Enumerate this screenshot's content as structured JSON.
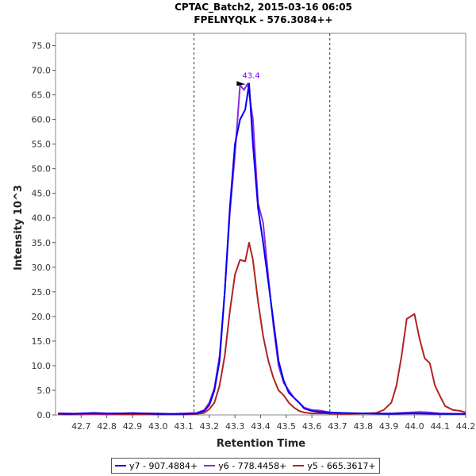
{
  "chart_data": {
    "type": "line",
    "title": "CPTAC_Batch2, 2015-03-16 06:05",
    "subtitle": "FPELNYQLK - 576.3084++",
    "xlabel": "Retention Time",
    "ylabel": "Intensity 10^3",
    "xlim": [
      42.6,
      44.2
    ],
    "ylim": [
      0,
      77.5
    ],
    "x_ticks": [
      "42.7",
      "42.8",
      "42.9",
      "43.0",
      "43.1",
      "43.2",
      "43.3",
      "43.4",
      "43.5",
      "43.6",
      "43.7",
      "43.8",
      "43.9",
      "44.0",
      "44.1",
      "44.2"
    ],
    "y_ticks": [
      "0.0",
      "5.0",
      "10.0",
      "15.0",
      "20.0",
      "25.0",
      "30.0",
      "35.0",
      "40.0",
      "45.0",
      "50.0",
      "55.0",
      "60.0",
      "65.0",
      "70.0",
      "75.0"
    ],
    "grid": false,
    "legend_position": "bottom",
    "integration_bounds": [
      43.14,
      43.67
    ],
    "peak_annotation": {
      "x": 43.35,
      "y": 67.3,
      "label": "43.4",
      "color": "#7f00ff"
    },
    "series": [
      {
        "name": "y7 - 907.4884+",
        "color": "#0000ee",
        "points": [
          [
            42.61,
            0.3
          ],
          [
            42.65,
            0.2
          ],
          [
            42.7,
            0.3
          ],
          [
            42.75,
            0.4
          ],
          [
            42.8,
            0.3
          ],
          [
            42.85,
            0.3
          ],
          [
            42.9,
            0.3
          ],
          [
            42.95,
            0.3
          ],
          [
            43.0,
            0.2
          ],
          [
            43.05,
            0.2
          ],
          [
            43.1,
            0.2
          ],
          [
            43.15,
            0.3
          ],
          [
            43.18,
            0.8
          ],
          [
            43.2,
            2.0
          ],
          [
            43.22,
            5.0
          ],
          [
            43.24,
            11.0
          ],
          [
            43.26,
            25.0
          ],
          [
            43.28,
            42.0
          ],
          [
            43.3,
            55.0
          ],
          [
            43.32,
            60.0
          ],
          [
            43.34,
            62.0
          ],
          [
            43.355,
            67.3
          ],
          [
            43.37,
            55.0
          ],
          [
            43.39,
            42.0
          ],
          [
            43.41,
            35.0
          ],
          [
            43.43,
            27.0
          ],
          [
            43.45,
            19.0
          ],
          [
            43.47,
            11.0
          ],
          [
            43.49,
            7.0
          ],
          [
            43.51,
            4.5
          ],
          [
            43.53,
            3.5
          ],
          [
            43.55,
            2.5
          ],
          [
            43.57,
            1.3
          ],
          [
            43.6,
            0.8
          ],
          [
            43.63,
            0.6
          ],
          [
            43.67,
            0.5
          ],
          [
            43.72,
            0.4
          ],
          [
            43.8,
            0.3
          ],
          [
            43.9,
            0.2
          ],
          [
            44.0,
            0.3
          ],
          [
            44.1,
            0.2
          ],
          [
            44.2,
            0.2
          ]
        ]
      },
      {
        "name": "y6 - 778.4458+",
        "color": "#8a2be2",
        "points": [
          [
            42.61,
            0.3
          ],
          [
            42.65,
            0.3
          ],
          [
            42.7,
            0.2
          ],
          [
            42.75,
            0.3
          ],
          [
            42.8,
            0.2
          ],
          [
            42.85,
            0.3
          ],
          [
            42.9,
            0.4
          ],
          [
            42.95,
            0.3
          ],
          [
            43.0,
            0.3
          ],
          [
            43.05,
            0.2
          ],
          [
            43.1,
            0.3
          ],
          [
            43.15,
            0.4
          ],
          [
            43.18,
            1.0
          ],
          [
            43.2,
            2.5
          ],
          [
            43.22,
            5.5
          ],
          [
            43.24,
            12.0
          ],
          [
            43.26,
            25.0
          ],
          [
            43.28,
            41.0
          ],
          [
            43.3,
            53.0
          ],
          [
            43.32,
            67.0
          ],
          [
            43.335,
            66.0
          ],
          [
            43.35,
            67.3
          ],
          [
            43.37,
            60.0
          ],
          [
            43.39,
            43.0
          ],
          [
            43.41,
            39.0
          ],
          [
            43.43,
            28.0
          ],
          [
            43.45,
            18.0
          ],
          [
            43.47,
            10.0
          ],
          [
            43.49,
            6.5
          ],
          [
            43.51,
            5.0
          ],
          [
            43.53,
            3.5
          ],
          [
            43.55,
            2.5
          ],
          [
            43.57,
            1.5
          ],
          [
            43.6,
            1.0
          ],
          [
            43.63,
            0.9
          ],
          [
            43.67,
            0.5
          ],
          [
            43.72,
            0.3
          ],
          [
            43.8,
            0.3
          ],
          [
            43.9,
            0.3
          ],
          [
            43.98,
            0.5
          ],
          [
            44.02,
            0.6
          ],
          [
            44.06,
            0.5
          ],
          [
            44.1,
            0.3
          ],
          [
            44.2,
            0.2
          ]
        ]
      },
      {
        "name": "y5 - 665.3617+",
        "color": "#b22222",
        "points": [
          [
            42.61,
            0.1
          ],
          [
            42.65,
            0.1
          ],
          [
            42.7,
            0.1
          ],
          [
            42.75,
            0.2
          ],
          [
            42.8,
            0.1
          ],
          [
            42.85,
            0.1
          ],
          [
            42.9,
            0.1
          ],
          [
            42.95,
            0.1
          ],
          [
            43.0,
            0.1
          ],
          [
            43.05,
            0.1
          ],
          [
            43.1,
            0.1
          ],
          [
            43.15,
            0.2
          ],
          [
            43.18,
            0.4
          ],
          [
            43.2,
            1.2
          ],
          [
            43.22,
            2.5
          ],
          [
            43.24,
            6.0
          ],
          [
            43.26,
            12.0
          ],
          [
            43.28,
            21.0
          ],
          [
            43.3,
            28.5
          ],
          [
            43.32,
            31.5
          ],
          [
            43.34,
            31.2
          ],
          [
            43.355,
            35.0
          ],
          [
            43.37,
            31.5
          ],
          [
            43.39,
            23.0
          ],
          [
            43.41,
            16.0
          ],
          [
            43.43,
            11.0
          ],
          [
            43.45,
            7.5
          ],
          [
            43.47,
            5.0
          ],
          [
            43.49,
            4.0
          ],
          [
            43.51,
            2.5
          ],
          [
            43.53,
            1.5
          ],
          [
            43.55,
            0.8
          ],
          [
            43.57,
            0.5
          ],
          [
            43.6,
            0.3
          ],
          [
            43.65,
            0.3
          ],
          [
            43.7,
            0.2
          ],
          [
            43.75,
            0.2
          ],
          [
            43.8,
            0.3
          ],
          [
            43.85,
            0.4
          ],
          [
            43.88,
            1.0
          ],
          [
            43.91,
            2.5
          ],
          [
            43.93,
            6.0
          ],
          [
            43.95,
            12.0
          ],
          [
            43.97,
            19.5
          ],
          [
            44.0,
            20.5
          ],
          [
            44.02,
            15.5
          ],
          [
            44.04,
            11.5
          ],
          [
            44.06,
            10.5
          ],
          [
            44.08,
            6.0
          ],
          [
            44.1,
            3.8
          ],
          [
            44.12,
            1.8
          ],
          [
            44.15,
            1.0
          ],
          [
            44.18,
            0.8
          ],
          [
            44.2,
            0.5
          ]
        ]
      }
    ]
  }
}
